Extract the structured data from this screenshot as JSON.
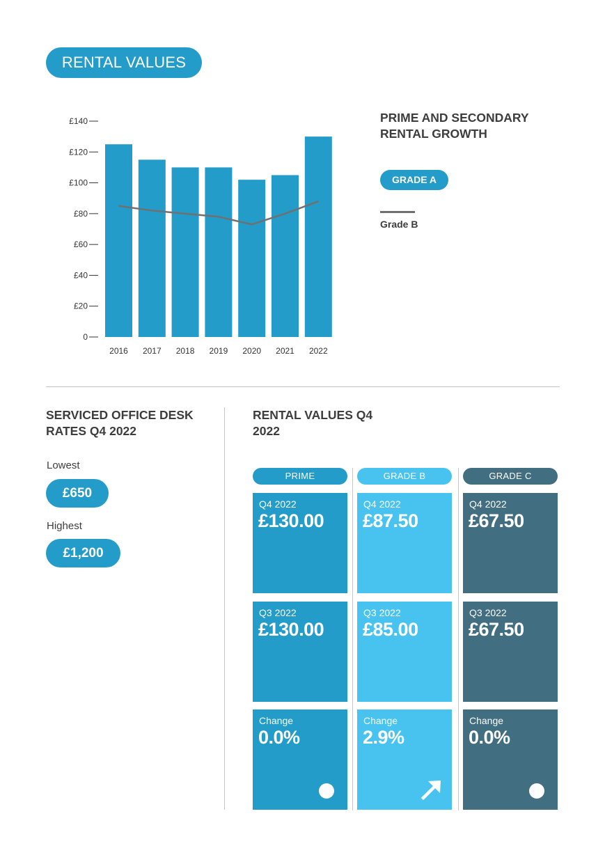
{
  "header": {
    "title": "RENTAL VALUES"
  },
  "chart_data": {
    "type": "bar",
    "categories": [
      "2016",
      "2017",
      "2018",
      "2019",
      "2020",
      "2021",
      "2022"
    ],
    "series": [
      {
        "name": "GRADE A",
        "type": "bar",
        "values": [
          125,
          115,
          110,
          110,
          102,
          105,
          130
        ],
        "color": "#239cc9"
      },
      {
        "name": "Grade B",
        "type": "line",
        "values": [
          85,
          82,
          80,
          78,
          73,
          80,
          88
        ],
        "color": "#707070"
      }
    ],
    "yticks": [
      "0",
      "£20",
      "£40",
      "£60",
      "£80",
      "£100",
      "£120",
      "£140"
    ],
    "ylim": [
      0,
      140
    ],
    "grid": false,
    "legend_placement": "right"
  },
  "legend": {
    "title": "PRIME AND SECONDARY RENTAL GROWTH",
    "grade_a": "GRADE A",
    "grade_b": "Grade B"
  },
  "desk_rates": {
    "title": "SERVICED OFFICE DESK RATES Q4 2022",
    "lowest_label": "Lowest",
    "lowest_value": "£650",
    "highest_label": "Highest",
    "highest_value": "£1,200"
  },
  "rental_values": {
    "title": "RENTAL VALUES Q4 2022",
    "columns": [
      {
        "header": "PRIME",
        "color": "#239cc9",
        "q4_label": "Q4 2022",
        "q4_value": "£130.00",
        "q3_label": "Q3 2022",
        "q3_value": "£130.00",
        "change_label": "Change",
        "change_value": "0.0%",
        "change_icon": "dot-icon"
      },
      {
        "header": "GRADE B",
        "color": "#48c3f0",
        "q4_label": "Q4 2022",
        "q4_value": "£87.50",
        "q3_label": "Q3 2022",
        "q3_value": "£85.00",
        "change_label": "Change",
        "change_value": "2.9%",
        "change_icon": "arrow-up-right-icon"
      },
      {
        "header": "GRADE C",
        "color": "#416e80",
        "q4_label": "Q4 2022",
        "q4_value": "£67.50",
        "q3_label": "Q3 2022",
        "q3_value": "£67.50",
        "change_label": "Change",
        "change_value": "0.0%",
        "change_icon": "dot-icon"
      }
    ]
  }
}
